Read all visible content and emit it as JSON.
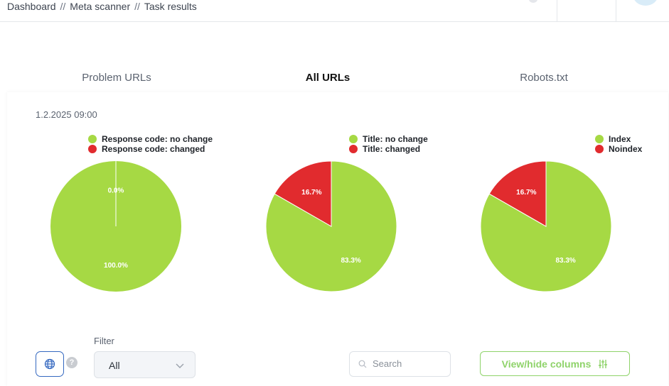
{
  "breadcrumb": [
    "Dashboard",
    "Meta scanner",
    "Task results"
  ],
  "breadcrumb_separator": "//",
  "tabs": [
    {
      "label": "Problem URLs",
      "active": false
    },
    {
      "label": "All URLs",
      "active": true
    },
    {
      "label": "Robots.txt",
      "active": false
    }
  ],
  "datetime": "1.2.2025 09:00",
  "colors": {
    "green": "#a6d944",
    "red": "#e12b2e",
    "accent": "#8fd36a",
    "primary": "#3468c0"
  },
  "chart_data": [
    {
      "type": "pie",
      "legend": [
        "Response code: no change",
        "Response code: changed"
      ],
      "values": [
        100.0,
        0.0
      ],
      "labels": [
        "100.0%",
        "0.0%"
      ]
    },
    {
      "type": "pie",
      "legend": [
        "Title: no change",
        "Title: changed"
      ],
      "values": [
        83.3,
        16.7
      ],
      "labels": [
        "83.3%",
        "16.7%"
      ]
    },
    {
      "type": "pie",
      "legend": [
        "Index",
        "Noindex"
      ],
      "values": [
        83.3,
        16.7
      ],
      "labels": [
        "83.3%",
        "16.7%"
      ]
    }
  ],
  "filter": {
    "label": "Filter",
    "value": "All"
  },
  "search": {
    "placeholder": "Search"
  },
  "columns_button": {
    "label": "View/hide columns"
  },
  "icons": {
    "globe": "globe-icon",
    "help": "help-icon",
    "search": "search-icon",
    "chevron": "chevron-down-icon",
    "sliders": "sliders-icon"
  },
  "help_glyph": "?"
}
